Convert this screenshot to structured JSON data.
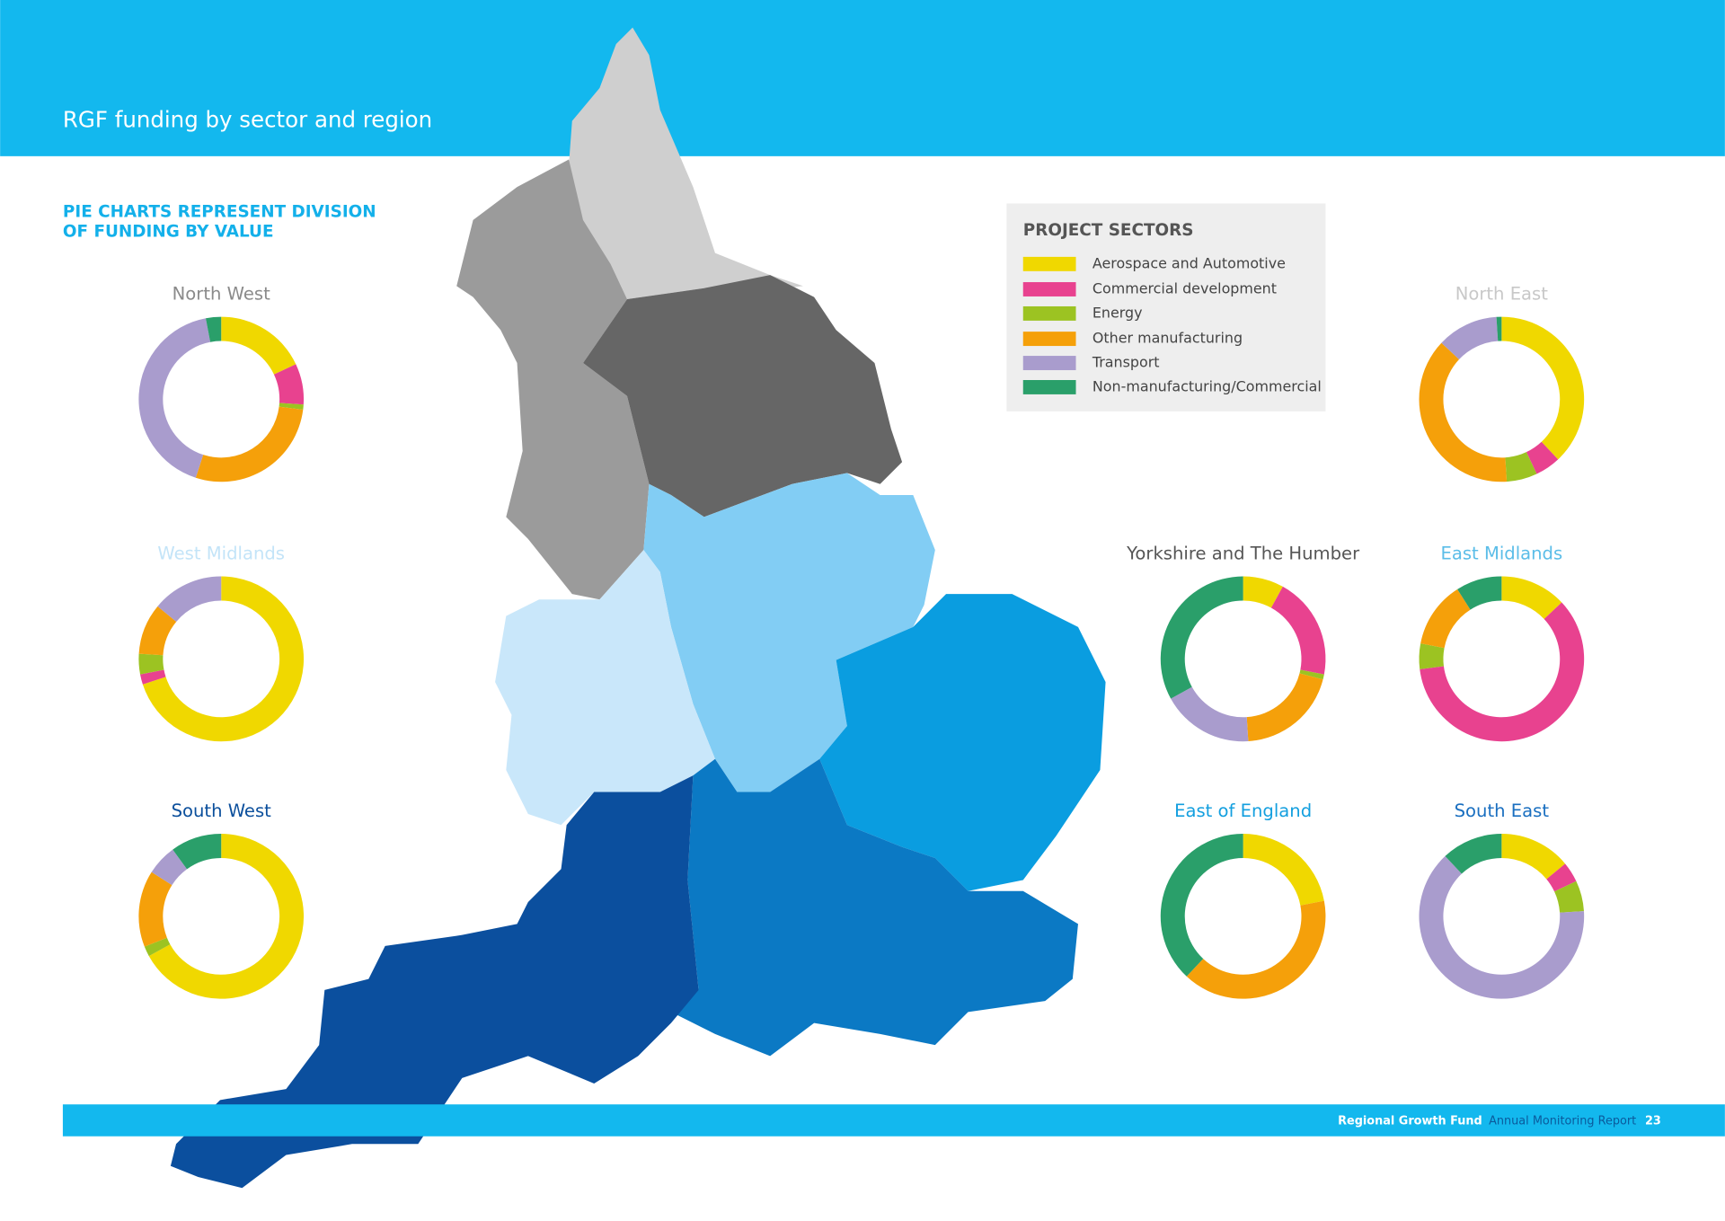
{
  "header": {
    "title": "RGF funding by sector and region"
  },
  "subtitle": [
    "PIE CHARTS REPRESENT DIVISION",
    "OF FUNDING BY VALUE"
  ],
  "legend": {
    "title": "PROJECT SECTORS",
    "items": [
      {
        "name": "Aerospace and Automotive",
        "color": "#f0d800"
      },
      {
        "name": "Commercial development",
        "color": "#e8428f"
      },
      {
        "name": "Energy",
        "color": "#9cc322"
      },
      {
        "name": "Other manufacturing",
        "color": "#f5a00a"
      },
      {
        "name": "Transport",
        "color": "#a99ccd"
      },
      {
        "name": "Non-manufacturing/Commercial",
        "color": "#2a9f6a"
      }
    ]
  },
  "chart_data": [
    {
      "type": "pie",
      "title": "North West",
      "title_color": "#8a8a8a",
      "values": [
        18,
        8,
        1,
        28,
        42,
        3
      ]
    },
    {
      "type": "pie",
      "title": "North East",
      "title_color": "#c8c8c8",
      "values": [
        38,
        5,
        6,
        38,
        12,
        1
      ]
    },
    {
      "type": "pie",
      "title": "West Midlands",
      "title_color": "#c3e4f8",
      "values": [
        70,
        2,
        4,
        10,
        14,
        0
      ]
    },
    {
      "type": "pie",
      "title": "South West",
      "title_color": "#0b4f9c",
      "values": [
        67,
        0,
        2,
        15,
        6,
        10
      ]
    },
    {
      "type": "pie",
      "title": "Yorkshire and The Humber",
      "title_color": "#555555",
      "values": [
        8,
        20,
        1,
        20,
        18,
        33
      ]
    },
    {
      "type": "pie",
      "title": "East Midlands",
      "title_color": "#5bbde8",
      "values": [
        13,
        60,
        5,
        13,
        0,
        9
      ]
    },
    {
      "type": "pie",
      "title": "East of England",
      "title_color": "#139fdf",
      "values": [
        22,
        0,
        0,
        40,
        0,
        38
      ]
    },
    {
      "type": "pie",
      "title": "South East",
      "title_color": "#1a6fc0",
      "values": [
        14,
        4,
        6,
        0,
        64,
        12
      ]
    }
  ],
  "footer": {
    "publication": "Regional Growth Fund",
    "report": "Annual Monitoring Report",
    "page": "23"
  }
}
